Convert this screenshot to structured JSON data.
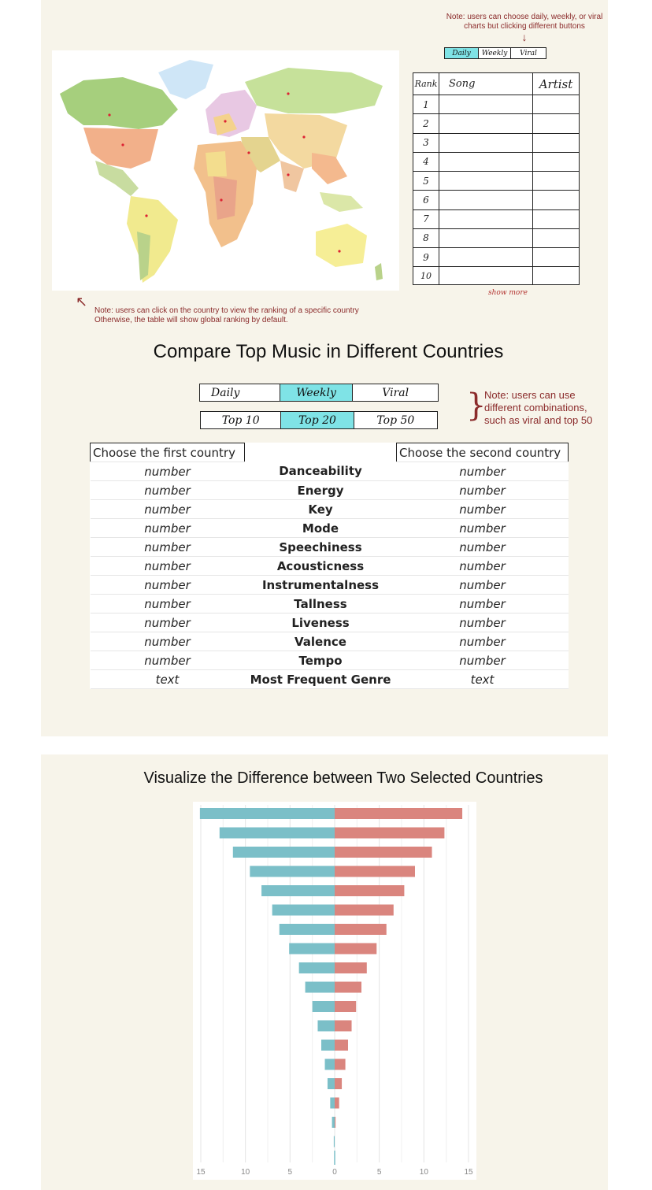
{
  "notes": {
    "top_right": [
      "Note: users can choose daily, weekly, or viral",
      "charts but clicking different buttons"
    ],
    "map": [
      "Note: users can click on the country to view the ranking of a specific country",
      "Otherwise, the table will show global ranking by default."
    ],
    "combos": [
      "Note: users can use",
      "different combinations,",
      "such as viral and top 50"
    ]
  },
  "small_buttons": [
    "Daily",
    "Weekly",
    "Viral"
  ],
  "rank_table": {
    "headers": [
      "Rank",
      "Song",
      "Artist"
    ],
    "ranks": [
      "1",
      "2",
      "3",
      "4",
      "5",
      "6",
      "7",
      "8",
      "9",
      "10"
    ],
    "show_more": "show more"
  },
  "compare": {
    "title": "Compare Top Music in Different Countries",
    "period_buttons": [
      "Daily",
      "Weekly",
      "Viral"
    ],
    "top_buttons": [
      "Top 10",
      "Top 20",
      "Top 50"
    ],
    "first_country": "Choose the first country",
    "second_country": "Choose the second country",
    "rows": [
      {
        "left": "number",
        "feature": "Danceability",
        "right": "number"
      },
      {
        "left": "number",
        "feature": "Energy",
        "right": "number"
      },
      {
        "left": "number",
        "feature": "Key",
        "right": "number"
      },
      {
        "left": "number",
        "feature": "Mode",
        "right": "number"
      },
      {
        "left": "number",
        "feature": "Speechiness",
        "right": "number"
      },
      {
        "left": "number",
        "feature": "Acousticness",
        "right": "number"
      },
      {
        "left": "number",
        "feature": "Instrumentalness",
        "right": "number"
      },
      {
        "left": "number",
        "feature": "Tallness",
        "right": "number"
      },
      {
        "left": "number",
        "feature": "Liveness",
        "right": "number"
      },
      {
        "left": "number",
        "feature": "Valence",
        "right": "number"
      },
      {
        "left": "number",
        "feature": "Tempo",
        "right": "number"
      },
      {
        "left": "text",
        "feature": "Most Frequent Genre",
        "right": "text"
      }
    ]
  },
  "visualize": {
    "title": "Visualize the Difference between Two Selected Countries"
  },
  "chart_data": {
    "type": "bar",
    "orientation": "horizontal-diverging",
    "x_ticks": [
      "15",
      "10",
      "5",
      "0",
      "5",
      "10",
      "15"
    ],
    "xlim": [
      -15,
      15
    ],
    "grid": true,
    "colors": {
      "left": "#7bbfc8",
      "right": "#da857e"
    },
    "left_values": [
      15.1,
      12.9,
      11.4,
      9.5,
      8.2,
      7.0,
      6.2,
      5.1,
      4.0,
      3.3,
      2.5,
      1.9,
      1.5,
      1.1,
      0.8,
      0.5,
      0.3,
      0.1
    ],
    "right_values": [
      14.3,
      12.3,
      10.9,
      9.0,
      7.8,
      6.6,
      5.8,
      4.7,
      3.6,
      3.0,
      2.4,
      1.9,
      1.5,
      1.2,
      0.8,
      0.5,
      0.1,
      0.0
    ]
  }
}
